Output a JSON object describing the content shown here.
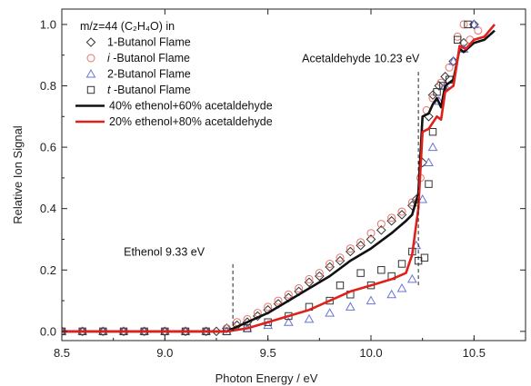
{
  "chart_data": {
    "type": "scatter",
    "legend_title": "m/z=44 (C₂H₄O) in",
    "xlabel": "Photon Energy / eV",
    "ylabel": "Relative Ion Signal",
    "xlim": [
      8.5,
      10.75
    ],
    "ylim": [
      -0.03,
      1.05
    ],
    "x_ticks": [
      "8.5",
      "9.0",
      "9.5",
      "10.0",
      "10.5"
    ],
    "x_tick_values": [
      8.5,
      9.0,
      9.5,
      10.0,
      10.5
    ],
    "y_ticks": [
      "0.0",
      "0.2",
      "0.4",
      "0.6",
      "0.8",
      "1.0"
    ],
    "y_tick_values": [
      0.0,
      0.2,
      0.4,
      0.6,
      0.8,
      1.0
    ],
    "legend_position": "upper-left",
    "grid": false,
    "series": [
      {
        "name": "1-Butanol Flame",
        "name_prefix": "",
        "name_rest": "1-Butanol Flame",
        "marker": "diamond",
        "color": "#333333",
        "points": [
          [
            8.5,
            0.0
          ],
          [
            8.6,
            0.0
          ],
          [
            8.7,
            0.0
          ],
          [
            8.8,
            0.0
          ],
          [
            8.9,
            0.0
          ],
          [
            9.0,
            0.0
          ],
          [
            9.1,
            0.0
          ],
          [
            9.2,
            0.0
          ],
          [
            9.25,
            0.0
          ],
          [
            9.3,
            0.01
          ],
          [
            9.35,
            0.02
          ],
          [
            9.4,
            0.03
          ],
          [
            9.45,
            0.05
          ],
          [
            9.5,
            0.07
          ],
          [
            9.55,
            0.09
          ],
          [
            9.6,
            0.11
          ],
          [
            9.65,
            0.13
          ],
          [
            9.7,
            0.16
          ],
          [
            9.75,
            0.18
          ],
          [
            9.8,
            0.21
          ],
          [
            9.85,
            0.23
          ],
          [
            9.9,
            0.26
          ],
          [
            9.95,
            0.28
          ],
          [
            10.0,
            0.3
          ],
          [
            10.05,
            0.33
          ],
          [
            10.1,
            0.36
          ],
          [
            10.15,
            0.38
          ],
          [
            10.2,
            0.41
          ],
          [
            10.22,
            0.43
          ],
          [
            10.25,
            0.55
          ],
          [
            10.28,
            0.7
          ],
          [
            10.3,
            0.77
          ],
          [
            10.33,
            0.8
          ],
          [
            10.36,
            0.83
          ],
          [
            10.4,
            0.88
          ],
          [
            10.45,
            0.94
          ],
          [
            10.5,
            1.0
          ]
        ]
      },
      {
        "name": "i -Butanol Flame",
        "name_prefix": "i",
        "name_rest": " -Butanol Flame",
        "marker": "circle",
        "color": "#e8736b",
        "points": [
          [
            8.5,
            0.0
          ],
          [
            8.6,
            0.0
          ],
          [
            8.7,
            0.0
          ],
          [
            8.8,
            0.0
          ],
          [
            8.9,
            0.0
          ],
          [
            9.0,
            0.0
          ],
          [
            9.1,
            0.0
          ],
          [
            9.2,
            0.0
          ],
          [
            9.3,
            0.01
          ],
          [
            9.35,
            0.03
          ],
          [
            9.4,
            0.04
          ],
          [
            9.45,
            0.06
          ],
          [
            9.5,
            0.08
          ],
          [
            9.55,
            0.1
          ],
          [
            9.6,
            0.12
          ],
          [
            9.65,
            0.14
          ],
          [
            9.7,
            0.17
          ],
          [
            9.75,
            0.19
          ],
          [
            9.8,
            0.22
          ],
          [
            9.85,
            0.24
          ],
          [
            9.9,
            0.27
          ],
          [
            9.95,
            0.29
          ],
          [
            10.0,
            0.32
          ],
          [
            10.05,
            0.35
          ],
          [
            10.1,
            0.37
          ],
          [
            10.15,
            0.39
          ],
          [
            10.2,
            0.42
          ],
          [
            10.24,
            0.5
          ],
          [
            10.27,
            0.72
          ],
          [
            10.3,
            0.76
          ],
          [
            10.34,
            0.81
          ],
          [
            10.38,
            0.86
          ],
          [
            10.42,
            0.96
          ],
          [
            10.45,
            1.0
          ],
          [
            10.48,
            0.95
          ],
          [
            10.52,
            0.98
          ]
        ]
      },
      {
        "name": "2-Butanol Flame",
        "name_prefix": "",
        "name_rest": "2-Butanol Flame",
        "marker": "triangle",
        "color": "#6b73d6",
        "points": [
          [
            8.5,
            0.0
          ],
          [
            8.6,
            0.0
          ],
          [
            8.7,
            0.0
          ],
          [
            8.8,
            0.0
          ],
          [
            8.9,
            0.0
          ],
          [
            9.0,
            0.0
          ],
          [
            9.1,
            0.0
          ],
          [
            9.2,
            0.0
          ],
          [
            9.3,
            0.0
          ],
          [
            9.4,
            0.01
          ],
          [
            9.5,
            0.02
          ],
          [
            9.6,
            0.03
          ],
          [
            9.7,
            0.04
          ],
          [
            9.8,
            0.06
          ],
          [
            9.9,
            0.08
          ],
          [
            10.0,
            0.1
          ],
          [
            10.1,
            0.12
          ],
          [
            10.15,
            0.14
          ],
          [
            10.2,
            0.17
          ],
          [
            10.22,
            0.28
          ],
          [
            10.25,
            0.43
          ],
          [
            10.28,
            0.55
          ],
          [
            10.3,
            0.6
          ],
          [
            10.33,
            0.75
          ],
          [
            10.36,
            0.8
          ],
          [
            10.4,
            0.88
          ],
          [
            10.45,
            0.92
          ],
          [
            10.5,
            1.0
          ]
        ]
      },
      {
        "name": "t -Butanol Flame",
        "name_prefix": "t",
        "name_rest": " -Butanol Flame",
        "marker": "square",
        "color": "#333333",
        "points": [
          [
            8.5,
            0.0
          ],
          [
            8.6,
            0.0
          ],
          [
            8.7,
            0.0
          ],
          [
            8.8,
            0.0
          ],
          [
            8.9,
            0.0
          ],
          [
            9.0,
            0.0
          ],
          [
            9.1,
            0.0
          ],
          [
            9.2,
            0.0
          ],
          [
            9.3,
            0.0
          ],
          [
            9.4,
            0.01
          ],
          [
            9.5,
            0.03
          ],
          [
            9.6,
            0.05
          ],
          [
            9.7,
            0.08
          ],
          [
            9.8,
            0.1
          ],
          [
            9.85,
            0.15
          ],
          [
            9.9,
            0.12
          ],
          [
            9.95,
            0.19
          ],
          [
            10.0,
            0.15
          ],
          [
            10.05,
            0.2
          ],
          [
            10.1,
            0.18
          ],
          [
            10.15,
            0.22
          ],
          [
            10.2,
            0.26
          ],
          [
            10.23,
            0.23
          ],
          [
            10.26,
            0.24
          ],
          [
            10.28,
            0.48
          ],
          [
            10.3,
            0.65
          ],
          [
            10.32,
            0.78
          ],
          [
            10.35,
            0.8
          ],
          [
            10.38,
            0.82
          ],
          [
            10.42,
            0.95
          ],
          [
            10.47,
            1.0
          ]
        ]
      }
    ],
    "lines": [
      {
        "name": "40% ethenol+60% acetaldehyde",
        "color": "#111111",
        "points": [
          [
            8.5,
            0.0
          ],
          [
            9.3,
            0.0
          ],
          [
            9.4,
            0.03
          ],
          [
            9.5,
            0.06
          ],
          [
            9.6,
            0.1
          ],
          [
            9.7,
            0.14
          ],
          [
            9.8,
            0.18
          ],
          [
            9.9,
            0.23
          ],
          [
            10.0,
            0.27
          ],
          [
            10.1,
            0.32
          ],
          [
            10.17,
            0.36
          ],
          [
            10.2,
            0.38
          ],
          [
            10.23,
            0.45
          ],
          [
            10.25,
            0.7
          ],
          [
            10.28,
            0.71
          ],
          [
            10.3,
            0.74
          ],
          [
            10.32,
            0.76
          ],
          [
            10.34,
            0.73
          ],
          [
            10.36,
            0.8
          ],
          [
            10.4,
            0.82
          ],
          [
            10.43,
            0.92
          ],
          [
            10.45,
            0.91
          ],
          [
            10.5,
            0.94
          ],
          [
            10.55,
            0.95
          ],
          [
            10.6,
            0.98
          ]
        ]
      },
      {
        "name": "20% ethenol+80% acetaldehyde",
        "color": "#e0201b",
        "points": [
          [
            8.5,
            0.0
          ],
          [
            9.3,
            0.0
          ],
          [
            9.4,
            0.01
          ],
          [
            9.5,
            0.03
          ],
          [
            9.6,
            0.05
          ],
          [
            9.7,
            0.07
          ],
          [
            9.8,
            0.1
          ],
          [
            9.9,
            0.13
          ],
          [
            10.0,
            0.15
          ],
          [
            10.1,
            0.17
          ],
          [
            10.17,
            0.19
          ],
          [
            10.2,
            0.25
          ],
          [
            10.23,
            0.4
          ],
          [
            10.25,
            0.65
          ],
          [
            10.28,
            0.66
          ],
          [
            10.3,
            0.68
          ],
          [
            10.32,
            0.7
          ],
          [
            10.34,
            0.69
          ],
          [
            10.36,
            0.78
          ],
          [
            10.4,
            0.8
          ],
          [
            10.43,
            0.93
          ],
          [
            10.46,
            0.92
          ],
          [
            10.5,
            0.95
          ],
          [
            10.55,
            0.96
          ],
          [
            10.6,
            1.0
          ]
        ]
      }
    ],
    "annotations": [
      {
        "text": "Ethenol 9.33 eV",
        "x": 9.33,
        "y_line": [
          0.0,
          0.22
        ]
      },
      {
        "text": "Acetaldehyde 10.23 eV",
        "x": 10.23,
        "y_line": [
          0.15,
          0.85
        ]
      }
    ]
  }
}
